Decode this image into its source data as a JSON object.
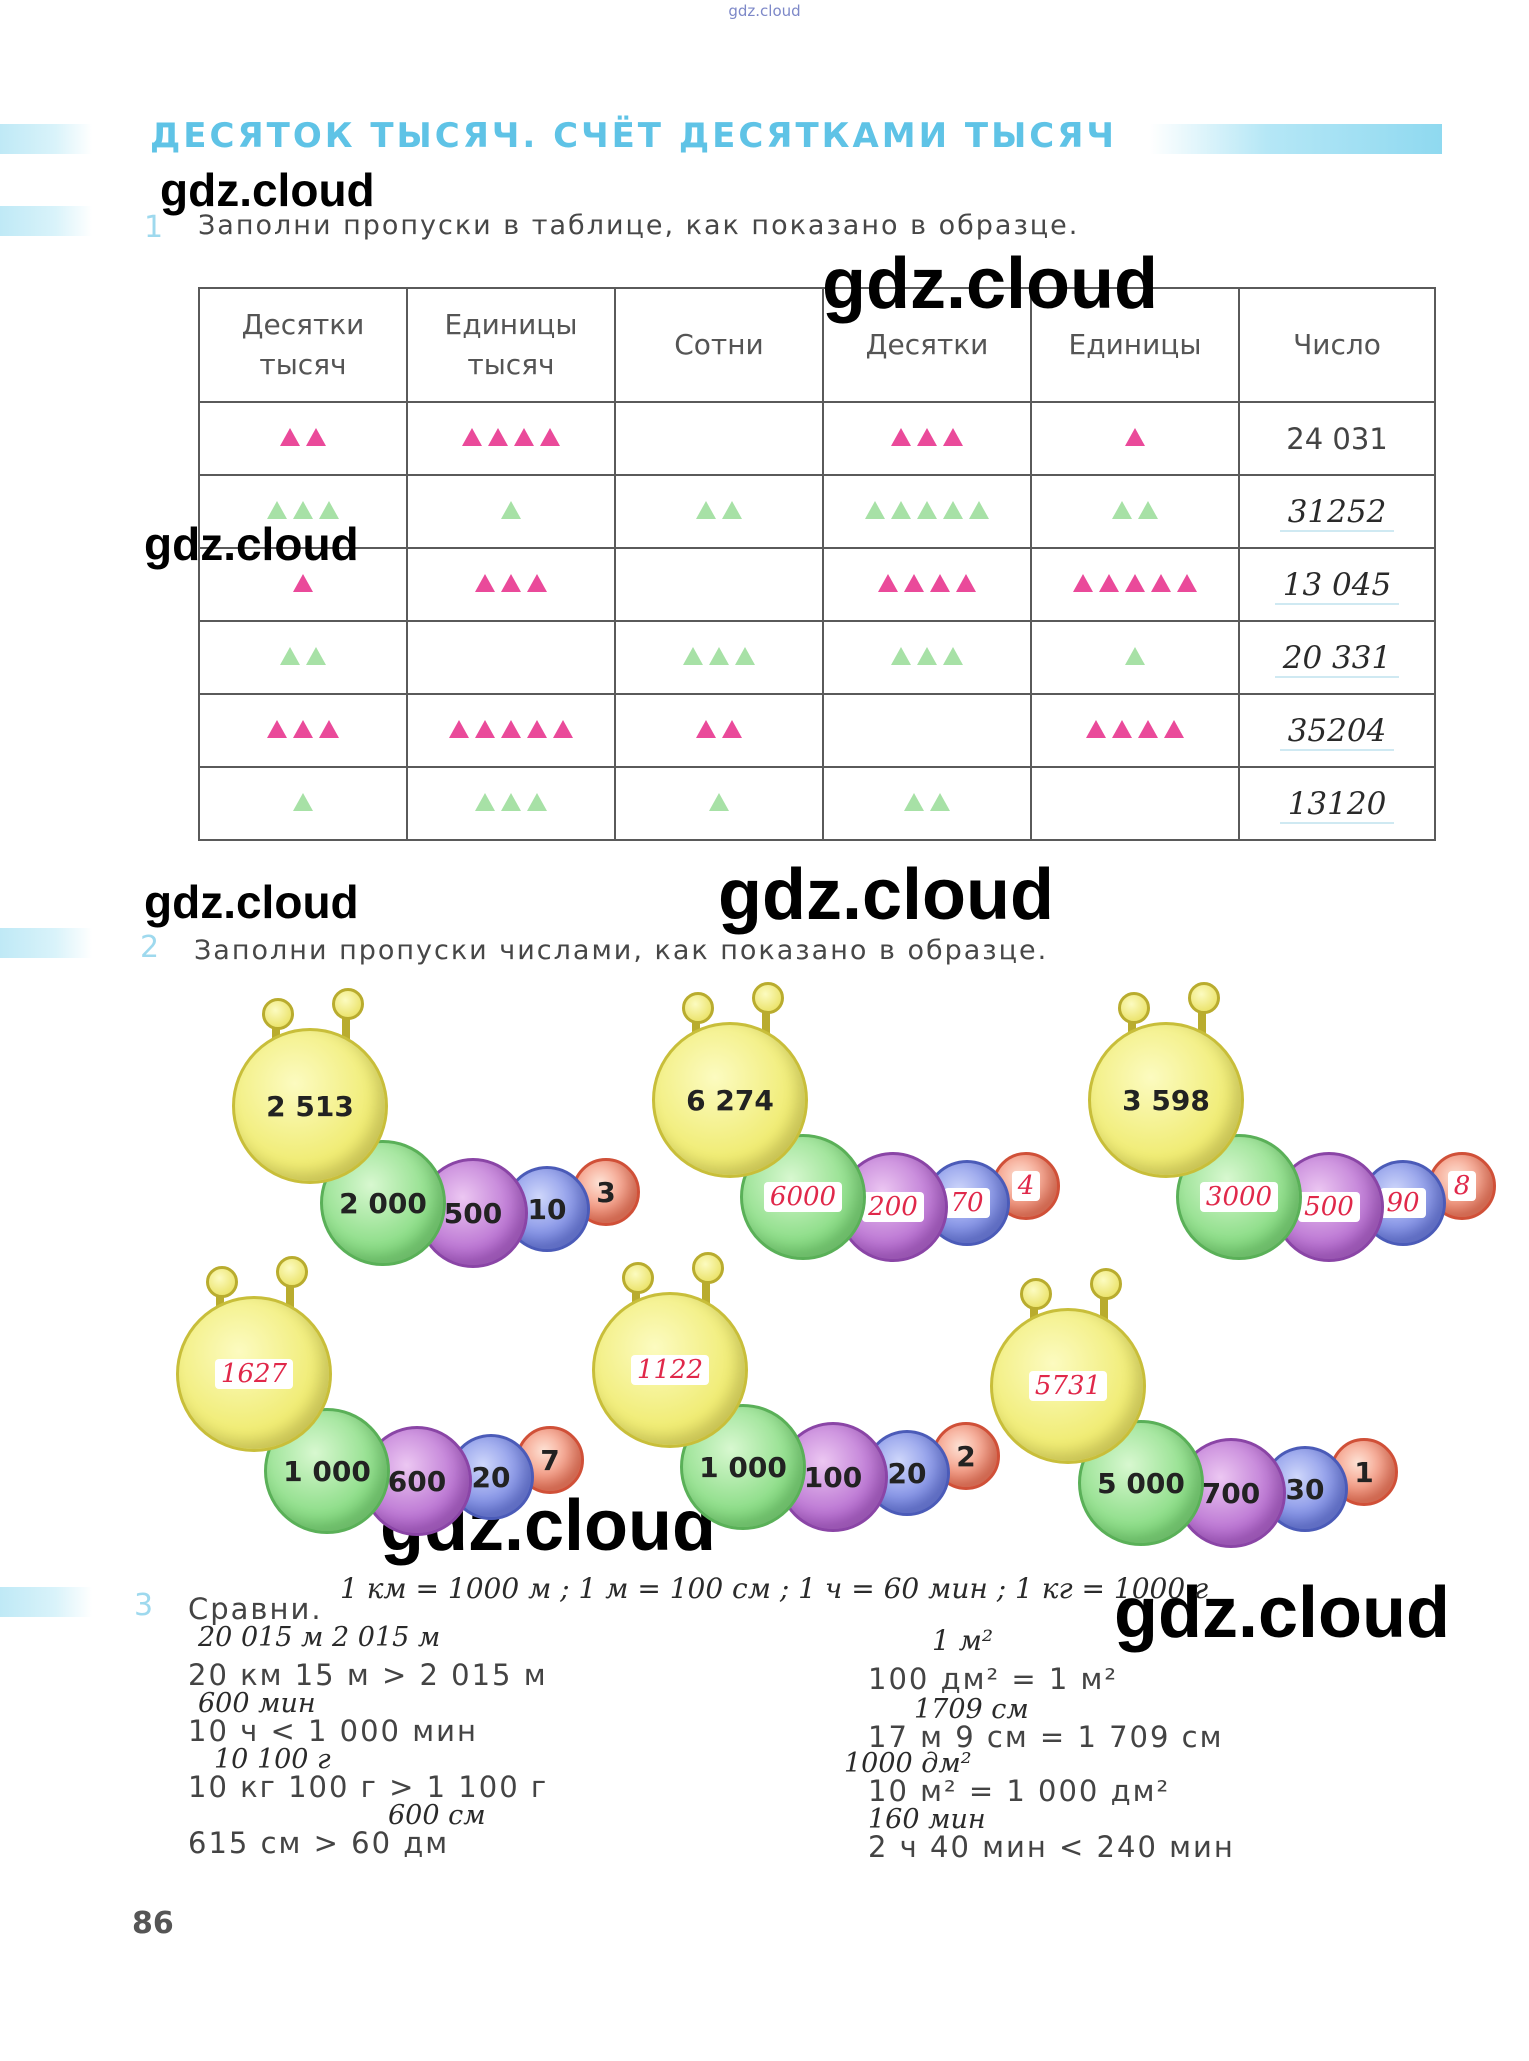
{
  "site_tag": "gdz.cloud",
  "heading": "ДЕСЯТОК ТЫСЯЧ. СЧЁТ ДЕСЯТКАМИ ТЫСЯЧ",
  "watermark": "gdz.cloud",
  "task1": {
    "number": "1",
    "text": "Заполни пропуски в таблице, как показано в образце.",
    "headers": [
      "Десятки тысяч",
      "Единицы тысяч",
      "Сотни",
      "Десятки",
      "Единицы",
      "Число"
    ],
    "rows": [
      {
        "counts": [
          2,
          4,
          0,
          3,
          1
        ],
        "color": "pink",
        "number": "24 031",
        "handwritten": false
      },
      {
        "counts": [
          3,
          1,
          2,
          5,
          2
        ],
        "color": "green",
        "number": "31252",
        "handwritten": true
      },
      {
        "counts": [
          1,
          3,
          0,
          4,
          5
        ],
        "color": "pink",
        "number": "13 045",
        "handwritten": true
      },
      {
        "counts": [
          2,
          0,
          3,
          3,
          1
        ],
        "color": "green",
        "number": "20 331",
        "handwritten": true
      },
      {
        "counts": [
          3,
          5,
          2,
          0,
          4
        ],
        "color": "pink",
        "number": "35204",
        "handwritten": true
      },
      {
        "counts": [
          1,
          3,
          1,
          2,
          0
        ],
        "color": "green",
        "number": "13120",
        "handwritten": true
      }
    ]
  },
  "task2": {
    "number": "2",
    "text": "Заполни пропуски числами, как показано в образце.",
    "caterpillars": [
      {
        "head": "2 513",
        "parts": [
          "2 000",
          "500",
          "10",
          "3"
        ],
        "head_hand": false,
        "parts_hand": false
      },
      {
        "head": "6 274",
        "parts": [
          "6000",
          "200",
          "70",
          "4"
        ],
        "head_hand": false,
        "parts_hand": true
      },
      {
        "head": "3 598",
        "parts": [
          "3000",
          "500",
          "90",
          "8"
        ],
        "head_hand": false,
        "parts_hand": true
      },
      {
        "head": "1627",
        "parts": [
          "1 000",
          "600",
          "20",
          "7"
        ],
        "head_hand": true,
        "parts_hand": false
      },
      {
        "head": "1122",
        "parts": [
          "1 000",
          "100",
          "20",
          "2"
        ],
        "head_hand": true,
        "parts_hand": false
      },
      {
        "head": "5731",
        "parts": [
          "5 000",
          "700",
          "30",
          "1"
        ],
        "head_hand": true,
        "parts_hand": false
      }
    ]
  },
  "task3": {
    "number": "3",
    "label": "Сравни.",
    "hint": "1 км = 1000 м ;   1 м = 100 см ;   1 ч = 60 мин ;   1 кг = 1000 г",
    "left": [
      {
        "note": "20 015 м            2 015 м",
        "line": "20 км 15 м  >  2 015 м"
      },
      {
        "note": "600 мин",
        "line": "10 ч  <  1 000 мин"
      },
      {
        "note": "10 100 г",
        "line": "10 кг 100 г  >  1 100 г"
      },
      {
        "note": "600 см",
        "line": "615 см  >  60 дм"
      }
    ],
    "right": [
      {
        "note": "1 м²",
        "line": "100 дм²  =  1 м²"
      },
      {
        "note": "1709 см",
        "line": "17 м 9 см  =  1 709 см"
      },
      {
        "note": "1000 дм²",
        "line": "10 м²  =  1 000 дм²"
      },
      {
        "note": "160 мин",
        "line": "2 ч 40 мин  <  240 мин"
      }
    ]
  },
  "page_number": "86"
}
